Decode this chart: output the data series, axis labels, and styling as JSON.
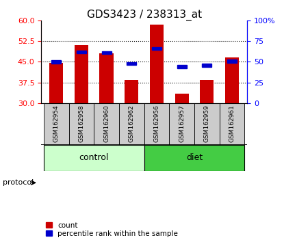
{
  "title": "GDS3423 / 238313_at",
  "samples": [
    "GSM162954",
    "GSM162958",
    "GSM162960",
    "GSM162962",
    "GSM162956",
    "GSM162957",
    "GSM162959",
    "GSM162961"
  ],
  "groups": [
    "control",
    "control",
    "control",
    "control",
    "diet",
    "diet",
    "diet",
    "diet"
  ],
  "bar_values": [
    44.5,
    51.0,
    48.0,
    38.5,
    58.5,
    33.5,
    38.5,
    46.5
  ],
  "bar_baseline": 30,
  "percentile_values": [
    50,
    62,
    61,
    48,
    66,
    44,
    46,
    51
  ],
  "left_ylim": [
    30,
    60
  ],
  "right_ylim": [
    0,
    100
  ],
  "left_yticks": [
    30,
    37.5,
    45,
    52.5,
    60
  ],
  "right_yticks": [
    0,
    25,
    50,
    75,
    100
  ],
  "bar_color": "#cc0000",
  "percentile_color": "#0000cc",
  "control_color": "#ccffcc",
  "diet_color": "#44cc44",
  "label_bg_color": "#cccccc",
  "protocol_label": "protocol",
  "control_label": "control",
  "diet_label": "diet",
  "legend_count": "count",
  "legend_percentile": "percentile rank within the sample",
  "title_fontsize": 11,
  "tick_fontsize": 8,
  "sample_fontsize": 6.5,
  "proto_fontsize": 9,
  "legend_fontsize": 7.5
}
